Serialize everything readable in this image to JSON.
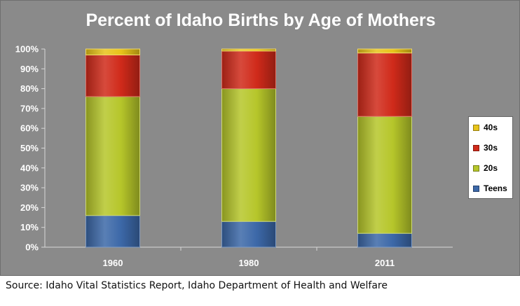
{
  "chart_data": {
    "type": "bar",
    "stacked": true,
    "title": "Percent of Idaho Births  by Age of Mothers",
    "xlabel": "",
    "ylabel": "",
    "categories": [
      "1960",
      "1980",
      "2011"
    ],
    "ylim": [
      0,
      100
    ],
    "yticks": [
      "0%",
      "10%",
      "20%",
      "30%",
      "40%",
      "50%",
      "60%",
      "70%",
      "80%",
      "90%",
      "100%"
    ],
    "series": [
      {
        "name": "Teens",
        "color": "#3c68a8",
        "values": [
          16,
          13,
          7
        ]
      },
      {
        "name": "20s",
        "color": "#b6c62a",
        "values": [
          60,
          67,
          59
        ]
      },
      {
        "name": "30s",
        "color": "#d02a1a",
        "values": [
          21,
          19,
          32
        ]
      },
      {
        "name": "40s",
        "color": "#e8c41a",
        "values": [
          3,
          1,
          2
        ]
      }
    ],
    "legend_order": [
      "40s",
      "30s",
      "20s",
      "Teens"
    ],
    "legend_position": "right",
    "grid": false
  },
  "source_note": "Source: Idaho Vital Statistics Report, Idaho Department of Health and Welfare"
}
